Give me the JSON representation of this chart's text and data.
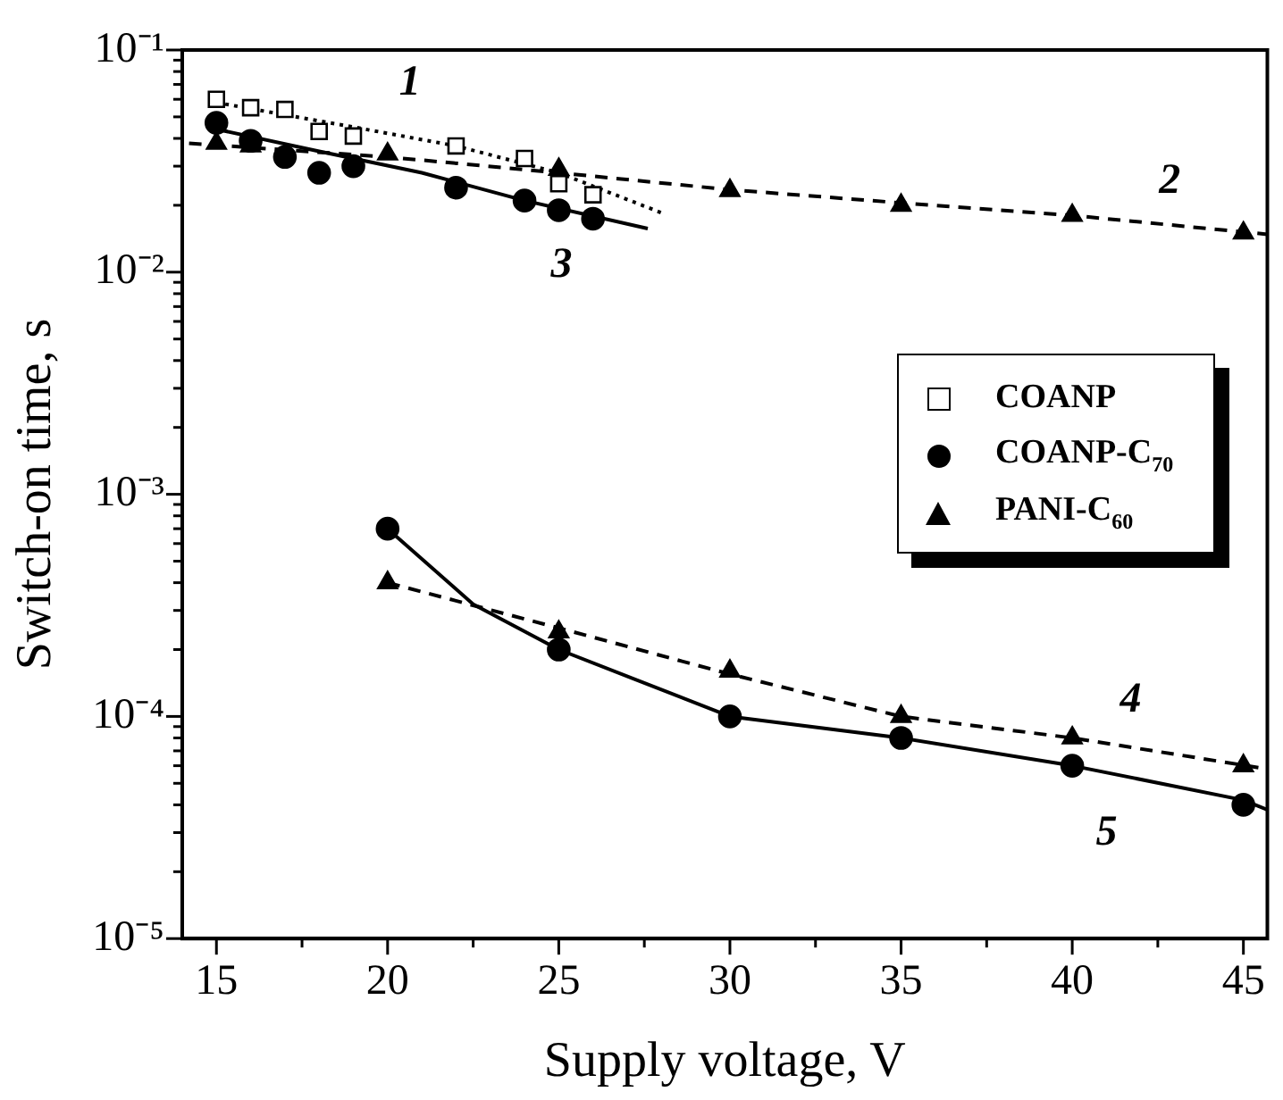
{
  "chart_data": {
    "type": "scatter",
    "xlabel": "Supply voltage, V",
    "ylabel": "Switch-on time, s",
    "xlim": [
      14,
      45.7
    ],
    "xticks": [
      15,
      {
        "value": 17.5,
        "label": null
      },
      20,
      {
        "value": 22.5,
        "label": null
      },
      25,
      {
        "value": 27.5,
        "label": null
      },
      30,
      {
        "value": 32.5,
        "label": null
      },
      35,
      {
        "value": 37.5,
        "label": null
      },
      40,
      {
        "value": 42.5,
        "label": null
      },
      45
    ],
    "ylim": [
      1e-05,
      0.1
    ],
    "yticks": [
      {
        "value": 1e-05,
        "label": "10⁻⁵"
      },
      {
        "value": 2e-05,
        "label": null
      },
      {
        "value": 3e-05,
        "label": null
      },
      {
        "value": 4e-05,
        "label": null
      },
      {
        "value": 5e-05,
        "label": null
      },
      {
        "value": 6e-05,
        "label": null
      },
      {
        "value": 7e-05,
        "label": null
      },
      {
        "value": 8e-05,
        "label": null
      },
      {
        "value": 9e-05,
        "label": null
      },
      {
        "value": 0.0001,
        "label": "10⁻⁴"
      },
      {
        "value": 0.0002,
        "label": null
      },
      {
        "value": 0.0003,
        "label": null
      },
      {
        "value": 0.0004,
        "label": null
      },
      {
        "value": 0.0005,
        "label": null
      },
      {
        "value": 0.0006,
        "label": null
      },
      {
        "value": 0.0007,
        "label": null
      },
      {
        "value": 0.0008,
        "label": null
      },
      {
        "value": 0.0009,
        "label": null
      },
      {
        "value": 0.001,
        "label": "10⁻³"
      },
      {
        "value": 0.002,
        "label": null
      },
      {
        "value": 0.003,
        "label": null
      },
      {
        "value": 0.004,
        "label": null
      },
      {
        "value": 0.005,
        "label": null
      },
      {
        "value": 0.006,
        "label": null
      },
      {
        "value": 0.007,
        "label": null
      },
      {
        "value": 0.008,
        "label": null
      },
      {
        "value": 0.009,
        "label": null
      },
      {
        "value": 0.01,
        "label": "10⁻²"
      },
      {
        "value": 0.02,
        "label": null
      },
      {
        "value": 0.03,
        "label": null
      },
      {
        "value": 0.04,
        "label": null
      },
      {
        "value": 0.05,
        "label": null
      },
      {
        "value": 0.06,
        "label": null
      },
      {
        "value": 0.07,
        "label": null
      },
      {
        "value": 0.08,
        "label": null
      },
      {
        "value": 0.09,
        "label": null
      },
      {
        "value": 0.1,
        "label": "10⁻¹"
      }
    ],
    "log": "y",
    "grid": false,
    "legend": "right",
    "series": [
      {
        "name": "1",
        "type": "line",
        "color": "#000000",
        "marker": "none",
        "line_style": "dotted",
        "x": [
          15,
          19,
          22,
          25,
          28
        ],
        "values": [
          0.058,
          0.045,
          0.037,
          0.028,
          0.0185
        ]
      },
      {
        "name": "2",
        "type": "line",
        "color": "#000000",
        "marker": "none",
        "line_style": "dashed",
        "x": [
          14.2,
          20,
          25,
          30,
          35,
          40,
          45.7
        ],
        "values": [
          0.038,
          0.033,
          0.028,
          0.0235,
          0.0205,
          0.018,
          0.0148
        ]
      },
      {
        "name": "3",
        "type": "line",
        "color": "#000000",
        "marker": "none",
        "line_style": "solid",
        "x": [
          15,
          18,
          21,
          24,
          27.6
        ],
        "values": [
          0.044,
          0.035,
          0.028,
          0.021,
          0.0157
        ]
      },
      {
        "name": "4",
        "type": "line",
        "color": "#000000",
        "marker": "none",
        "line_style": "dashed",
        "x": [
          20,
          25,
          30,
          35,
          40,
          45.7
        ],
        "values": [
          0.0004,
          0.00025,
          0.000155,
          0.0001,
          8e-05,
          5.8e-05
        ]
      },
      {
        "name": "5",
        "type": "line",
        "color": "#000000",
        "marker": "none",
        "line_style": "solid",
        "x": [
          20,
          22.5,
          25,
          30,
          35,
          40,
          45,
          45.7
        ],
        "values": [
          0.0007,
          0.00032,
          0.0002,
          0.0001,
          8e-05,
          6e-05,
          4.2e-05,
          3.8e-05
        ]
      },
      {
        "name": "COANP",
        "color": "#000000",
        "marker": "square",
        "x": [
          15,
          16,
          17,
          18,
          19,
          22,
          24,
          25,
          26
        ],
        "values": [
          0.06,
          0.055,
          0.054,
          0.043,
          0.041,
          0.037,
          0.0325,
          0.025,
          0.0223
        ]
      },
      {
        "name": "COANP-C$_{70}$",
        "color": "#000000",
        "marker": "circle",
        "x": [
          15,
          16,
          17,
          18,
          19,
          22,
          24,
          25,
          26
        ],
        "values": [
          0.047,
          0.039,
          0.033,
          0.028,
          0.03,
          0.024,
          0.021,
          0.019,
          0.0174
        ]
      },
      {
        "color": "#000000",
        "marker": "circle",
        "x": [
          20,
          25,
          30,
          35,
          40,
          45
        ],
        "values": [
          0.0007,
          0.0002,
          0.0001,
          8e-05,
          6e-05,
          4e-05
        ]
      },
      {
        "name": "PANI-C$_{60}$",
        "color": "#000000",
        "marker": "triangle",
        "x": [
          15,
          16,
          20,
          25,
          30,
          35,
          40,
          45
        ],
        "values": [
          0.038,
          0.037,
          0.034,
          0.029,
          0.0233,
          0.02,
          0.018,
          0.015
        ]
      },
      {
        "color": "#000000",
        "marker": "triangle",
        "x": [
          20,
          25,
          30,
          35,
          40,
          45
        ],
        "values": [
          0.0004,
          0.00024,
          0.00016,
          0.0001,
          8e-05,
          6e-05
        ]
      }
    ]
  }
}
